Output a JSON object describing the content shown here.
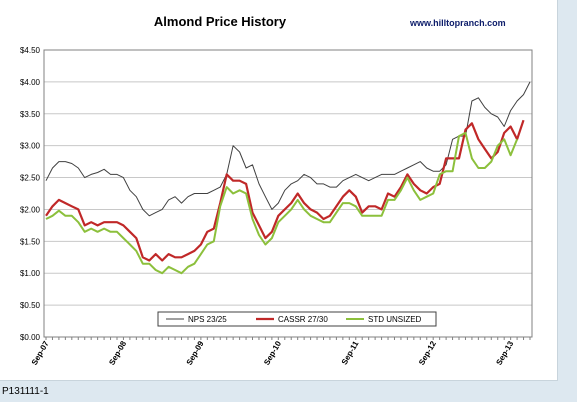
{
  "caption": "P131111-1",
  "chart_data": {
    "type": "line",
    "title": "Almond Price History",
    "source_text": "www.hilltopranch.com",
    "xlabel": "",
    "ylabel": "",
    "ylim": [
      0,
      4.5
    ],
    "y_ticks": [
      "$0.00",
      "$0.50",
      "$1.00",
      "$1.50",
      "$2.00",
      "$2.50",
      "$3.00",
      "$3.50",
      "$4.00",
      "$4.50"
    ],
    "x_ticks": [
      "Sep-07",
      "Sep-08",
      "Sep-09",
      "Sep-10",
      "Sep-11",
      "Sep-12",
      "Sep-13"
    ],
    "x_start": "Sep-07",
    "x_end": "Nov-13",
    "grid": true,
    "legend_position": "bottom-center",
    "series": [
      {
        "name": "NPS 23/25",
        "color": "#404040",
        "values": [
          2.45,
          2.65,
          2.75,
          2.75,
          2.72,
          2.65,
          2.5,
          2.55,
          2.58,
          2.63,
          2.55,
          2.55,
          2.5,
          2.3,
          2.2,
          2.0,
          1.9,
          1.95,
          2.0,
          2.15,
          2.2,
          2.1,
          2.2,
          2.25,
          2.25,
          2.25,
          2.3,
          2.35,
          2.55,
          3.0,
          2.9,
          2.65,
          2.7,
          2.4,
          2.2,
          2.0,
          2.1,
          2.3,
          2.4,
          2.45,
          2.55,
          2.5,
          2.4,
          2.4,
          2.35,
          2.35,
          2.45,
          2.5,
          2.55,
          2.5,
          2.45,
          2.5,
          2.55,
          2.55,
          2.55,
          2.6,
          2.65,
          2.7,
          2.75,
          2.65,
          2.6,
          2.6,
          2.7,
          3.1,
          3.15,
          3.15,
          3.7,
          3.75,
          3.6,
          3.5,
          3.45,
          3.3,
          3.55,
          3.7,
          3.8,
          4.0
        ]
      },
      {
        "name": "CASSR 27/30",
        "color": "#c02828",
        "values": [
          1.9,
          2.05,
          2.15,
          2.1,
          2.05,
          2.0,
          1.75,
          1.8,
          1.75,
          1.8,
          1.8,
          1.8,
          1.75,
          1.65,
          1.55,
          1.25,
          1.2,
          1.3,
          1.2,
          1.3,
          1.25,
          1.25,
          1.3,
          1.35,
          1.45,
          1.65,
          1.7,
          2.1,
          2.55,
          2.45,
          2.45,
          2.4,
          1.95,
          1.75,
          1.55,
          1.65,
          1.9,
          2.0,
          2.1,
          2.25,
          2.1,
          2.0,
          1.95,
          1.85,
          1.9,
          2.05,
          2.2,
          2.3,
          2.2,
          1.95,
          2.05,
          2.05,
          2.0,
          2.25,
          2.2,
          2.35,
          2.55,
          2.4,
          2.3,
          2.25,
          2.35,
          2.4,
          2.8,
          2.8,
          2.8,
          3.25,
          3.35,
          3.1,
          2.95,
          2.8,
          2.9,
          3.2,
          3.3,
          3.1,
          3.4
        ]
      },
      {
        "name": "STD UNSIZED",
        "color": "#8cc03c",
        "values": [
          1.85,
          1.9,
          1.98,
          1.9,
          1.9,
          1.8,
          1.65,
          1.7,
          1.65,
          1.7,
          1.65,
          1.65,
          1.55,
          1.45,
          1.35,
          1.15,
          1.15,
          1.05,
          1.0,
          1.1,
          1.05,
          1.0,
          1.1,
          1.15,
          1.3,
          1.45,
          1.5,
          2.05,
          2.35,
          2.25,
          2.3,
          2.25,
          1.85,
          1.6,
          1.45,
          1.55,
          1.8,
          1.9,
          2.0,
          2.15,
          2.0,
          1.9,
          1.85,
          1.8,
          1.8,
          1.95,
          2.1,
          2.1,
          2.05,
          1.9,
          1.9,
          1.9,
          1.9,
          2.15,
          2.15,
          2.3,
          2.5,
          2.3,
          2.15,
          2.2,
          2.25,
          2.55,
          2.6,
          2.6,
          3.15,
          3.2,
          2.8,
          2.65,
          2.65,
          2.75,
          3.0,
          3.1,
          2.85,
          3.1
        ]
      }
    ]
  }
}
